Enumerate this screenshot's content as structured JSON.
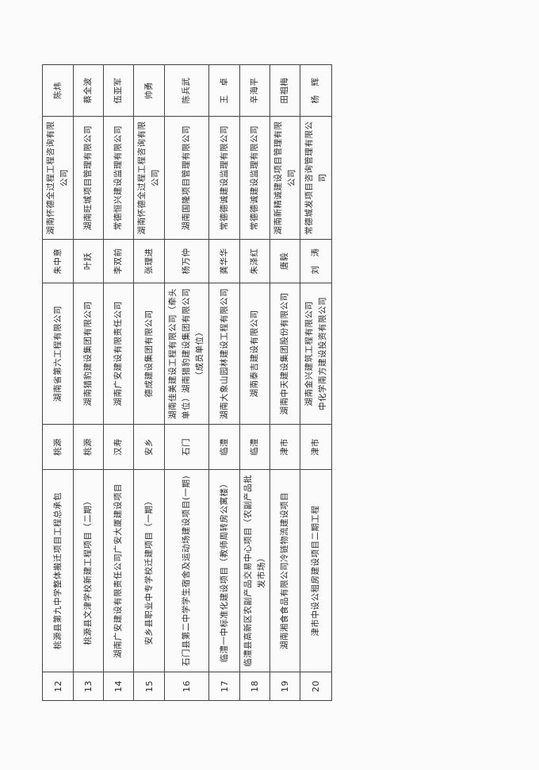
{
  "table": {
    "rows": [
      {
        "no": "12",
        "project": "桃源县第九中学整体搬迁项目工程总承包",
        "location": "桃源",
        "contractor": [
          "湖南省第六工程有限公司"
        ],
        "manager": "朱中意",
        "supervisor": "湖南怀德全过程工程咨询有限公司",
        "chief": "陈炜"
      },
      {
        "no": "13",
        "project": "桃源县文津学校新建工程项目（二期）",
        "location": "桃源",
        "contractor": [
          "湖南猎豹建设集团有限公司"
        ],
        "manager": "叶跃",
        "supervisor": "湖南旺城项目管理有限公司",
        "chief": "蔡全波"
      },
      {
        "no": "14",
        "project": "湖南广安建设有限责任公司广安大厦建设项目",
        "location": "汉寿",
        "contractor": [
          "湖南广安建设有限责任公司"
        ],
        "manager": "李双前",
        "supervisor": "常德恒兴建设监理有限公司",
        "chief": "伍亚军"
      },
      {
        "no": "15",
        "project": "安乡县职业中专学校迁建项目（一期）",
        "location": "安乡",
        "contractor": [
          "德成建设集团有限公司"
        ],
        "manager": "张理进",
        "supervisor": "湖南怀德全过程工程咨询有限公司",
        "chief": "帅勇"
      },
      {
        "no": "16",
        "project": "石门县第二中学学生宿舍及运动场建设项目(一期)",
        "location": "石门",
        "contractor": [
          "湖南佳美建设工程有限公司（牵头单位）湖南猎豹建设集团有限公司（成员单位）"
        ],
        "manager": "杨万仲",
        "supervisor": "湖南国隆项目管理有限公司",
        "chief": "陈兵武"
      },
      {
        "no": "17",
        "project": "临澧一中标准化建设项目（教师周转房公寓楼）",
        "location": "临澧",
        "contractor": [
          "湖南大象山园林建设工程有限公司"
        ],
        "manager": "龚华华",
        "supervisor": "常德德诚建设监理有限公司",
        "chief": "王　卓"
      },
      {
        "no": "18",
        "project": "临澧县高新区农副产品交易中心项目（农副产品批发市场）",
        "location": "临澧",
        "contractor": [
          "湖南泰吉建设有限公司"
        ],
        "manager": "朱泽红",
        "supervisor": "常德德诚建设监理有限公司",
        "chief": "辛海平"
      },
      {
        "no": "19",
        "project": "湖南湘食食品有限公司冷链物流建设项目",
        "location": "津市",
        "contractor": [
          "湖南中天建设集团股份有限公司"
        ],
        "manager": "唐毅",
        "supervisor": "湖南新精诚建设项目管理有限公司",
        "chief": "田祖梅"
      },
      {
        "no": "20",
        "project": "津市中设公租房建设项目二期工程",
        "location": "津市",
        "contractor": [
          "湖南金兴建筑工程有限公司",
          "中化学南方建设投资有限公司"
        ],
        "manager": "刘　涛",
        "supervisor": "常德城发项目咨询管理有限公司",
        "chief": "杨　辉"
      }
    ]
  }
}
